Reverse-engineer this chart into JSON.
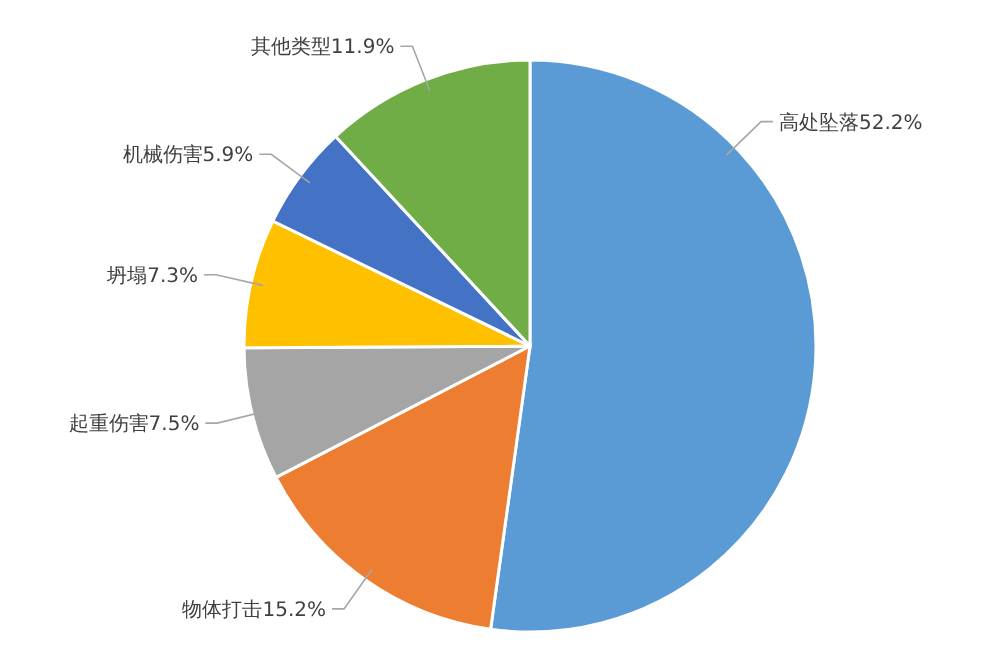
{
  "chart_data": {
    "type": "pie",
    "categories": [
      "高处坠落",
      "物体打击",
      "起重伤害",
      "坍塌",
      "机械伤害",
      "其他类型"
    ],
    "values": [
      52.2,
      15.2,
      7.5,
      7.3,
      5.9,
      11.9
    ],
    "value_labels": [
      "52.2%",
      "15.2%",
      "7.5%",
      "7.3%",
      "5.9%",
      "11.9%"
    ],
    "colors": [
      "#5b9bd5",
      "#ed7d31",
      "#a5a5a5",
      "#ffc000",
      "#4472c4",
      "#70ad47"
    ]
  }
}
